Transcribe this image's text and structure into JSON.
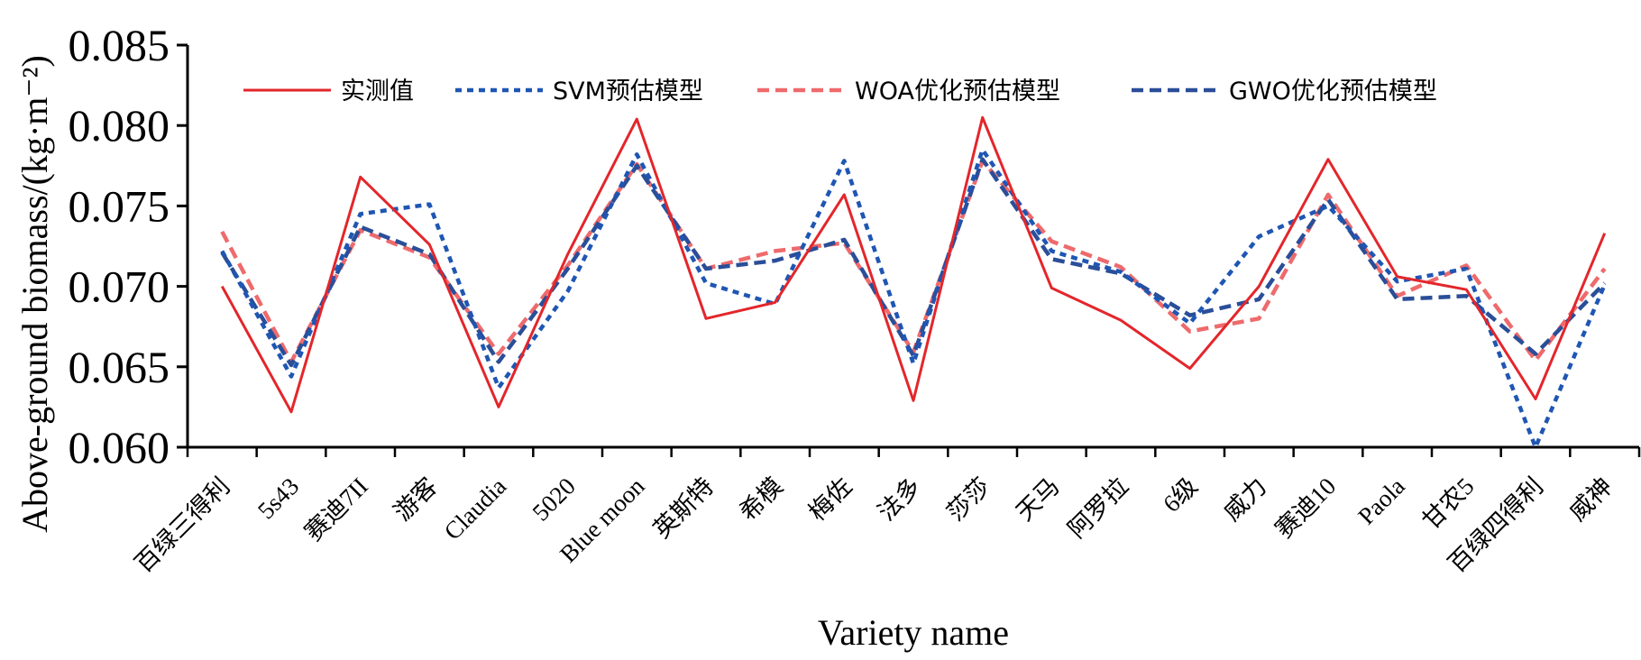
{
  "chart_data": {
    "type": "line",
    "xlabel": "Variety name",
    "ylabel": "Above-ground biomass/(kg·m⁻²)",
    "ylim": [
      0.06,
      0.085
    ],
    "yticks": [
      "0.060",
      "0.065",
      "0.070",
      "0.075",
      "0.080",
      "0.085"
    ],
    "ytick_values": [
      0.06,
      0.065,
      0.07,
      0.075,
      0.08,
      0.085
    ],
    "grid": false,
    "legend_position": "top",
    "categories": [
      "百绿三得利",
      "5s43",
      "赛迪7II",
      "游客",
      "Claudia",
      "5020",
      "Blue moon",
      "英斯特",
      "希模",
      "梅佐",
      "法多",
      "莎莎",
      "天马",
      "阿罗拉",
      "6级",
      "威力",
      "赛迪10",
      "Paola",
      "甘农5",
      "百绿四得利",
      "威神"
    ],
    "series": [
      {
        "name": "实测值",
        "color": "#e3262b",
        "dash": "solid",
        "values": [
          0.07,
          0.0622,
          0.0768,
          0.0726,
          0.0625,
          0.072,
          0.0804,
          0.068,
          0.069,
          0.0757,
          0.0629,
          0.0805,
          0.0699,
          0.0679,
          0.0649,
          0.07,
          0.0779,
          0.0706,
          0.0698,
          0.063,
          0.0733
        ]
      },
      {
        "name": "SVM预估模型",
        "color": "#1f56b3",
        "dash": "dotted",
        "values": [
          0.0722,
          0.0644,
          0.0745,
          0.0751,
          0.0637,
          0.0697,
          0.0782,
          0.0702,
          0.0689,
          0.0778,
          0.0652,
          0.0785,
          0.0722,
          0.0709,
          0.0677,
          0.0731,
          0.075,
          0.0703,
          0.0711,
          0.06,
          0.0701
        ]
      },
      {
        "name": "WOA优化预估模型",
        "color": "#ee6a6c",
        "dash": "dashed",
        "values": [
          0.0734,
          0.0653,
          0.0735,
          0.0718,
          0.0658,
          0.0713,
          0.0776,
          0.0711,
          0.0722,
          0.0727,
          0.0659,
          0.0778,
          0.0728,
          0.0712,
          0.0672,
          0.068,
          0.0757,
          0.0694,
          0.0713,
          0.0654,
          0.0711
        ]
      },
      {
        "name": "GWO优化预估模型",
        "color": "#2a4e98",
        "dash": "dashed",
        "values": [
          0.0721,
          0.0651,
          0.0737,
          0.072,
          0.0653,
          0.0711,
          0.0775,
          0.0711,
          0.0716,
          0.0729,
          0.0657,
          0.0779,
          0.0717,
          0.0708,
          0.0682,
          0.0692,
          0.0754,
          0.0692,
          0.0694,
          0.0658,
          0.0702
        ]
      }
    ]
  }
}
